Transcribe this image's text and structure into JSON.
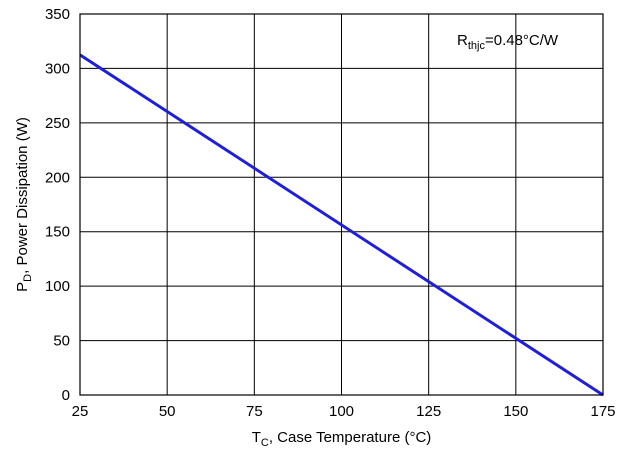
{
  "chart_data": {
    "type": "line",
    "xlabel": {
      "main": "T",
      "sub": "C",
      "rest": ", Case Temperature (°C)"
    },
    "ylabel": {
      "main": "P",
      "sub": "D",
      "rest": ", Power Dissipation (W)"
    },
    "xlim": [
      25,
      175
    ],
    "ylim": [
      0,
      350
    ],
    "xticks": [
      25,
      50,
      75,
      100,
      125,
      150,
      175
    ],
    "yticks": [
      0,
      50,
      100,
      150,
      200,
      250,
      300,
      350
    ],
    "grid": true,
    "annotation": {
      "main": "R",
      "sub": "thjc",
      "rest": "=0.48°C/W"
    },
    "series": [
      {
        "color": "#1f1fd6",
        "x": [
          25,
          175
        ],
        "y": [
          312.5,
          0
        ]
      }
    ]
  }
}
